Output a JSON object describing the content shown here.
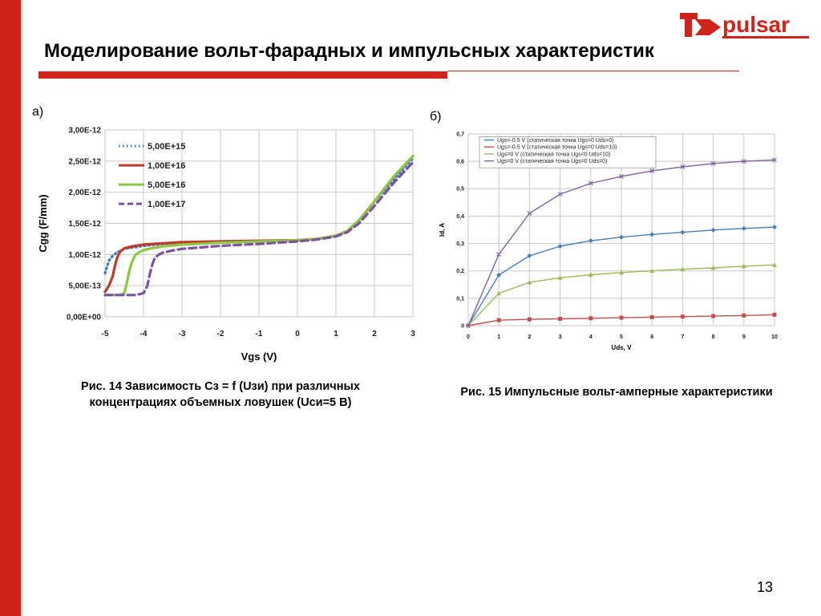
{
  "title": "Моделирование вольт-фарадных и импульсных характеристик",
  "logo": {
    "text": "pulsar"
  },
  "colors": {
    "accent": "#d0231c"
  },
  "labels": {
    "a": "а)",
    "b": "б)"
  },
  "captions": {
    "a_line1": "Рис. 14 Зависимость Сз = f (Uзи) при различных",
    "a_line2": "концентрациях объемных ловушек (Uси=5 В)",
    "b": "Рис. 15 Импульсные вольт-амперные характеристики"
  },
  "page_number": "13",
  "chart_data": [
    {
      "type": "scatter",
      "xlabel": "Vgs (V)",
      "ylabel": "Cgg (F/mm)",
      "xlim": [
        -5,
        3
      ],
      "ylim": [
        0,
        3e-12
      ],
      "x_ticks": [
        "-5",
        "-4",
        "-3",
        "-2",
        "-1",
        "0",
        "1",
        "2",
        "3"
      ],
      "y_ticks": [
        "0,00E+00",
        "5,00E-13",
        "1,00E-12",
        "1,50E-12",
        "2,00E-12",
        "2,50E-12",
        "3,00E-12"
      ],
      "grid": true,
      "legend_position": "top-left",
      "series": [
        {
          "name": "5,00E+15",
          "color": "#3a7dc4",
          "style": "dotted",
          "x": [
            -5,
            -4.9,
            -4.8,
            -4.7,
            -4.6,
            -4.5,
            -4.3,
            -4,
            -3.5,
            -3,
            -2,
            -1,
            0,
            0.5,
            1,
            1.3,
            1.6,
            2,
            2.5,
            3
          ],
          "y": [
            7e-13,
            9e-13,
            9.8e-13,
            1.03e-12,
            1.06e-12,
            1.09e-12,
            1.11e-12,
            1.14e-12,
            1.17e-12,
            1.19e-12,
            1.21e-12,
            1.22e-12,
            1.23e-12,
            1.25e-12,
            1.3e-12,
            1.38e-12,
            1.55e-12,
            1.85e-12,
            2.2e-12,
            2.55e-12
          ]
        },
        {
          "name": "1,00E+16",
          "color": "#c0392b",
          "style": "solid",
          "x": [
            -5,
            -4.9,
            -4.8,
            -4.75,
            -4.7,
            -4.65,
            -4.6,
            -4.5,
            -4.3,
            -4,
            -3.5,
            -3,
            -2,
            -1,
            0,
            0.5,
            1,
            1.3,
            1.6,
            2,
            2.5,
            3
          ],
          "y": [
            4e-13,
            5e-13,
            6.5e-13,
            8e-13,
            9.2e-13,
            1e-12,
            1.05e-12,
            1.1e-12,
            1.13e-12,
            1.16e-12,
            1.18e-12,
            1.2e-12,
            1.21e-12,
            1.22e-12,
            1.23e-12,
            1.25e-12,
            1.3e-12,
            1.38e-12,
            1.55e-12,
            1.85e-12,
            2.25e-12,
            2.58e-12
          ]
        },
        {
          "name": "5,00E+16",
          "color": "#8dc63f",
          "style": "solid",
          "x": [
            -5,
            -4.6,
            -4.5,
            -4.45,
            -4.4,
            -4.35,
            -4.3,
            -4.25,
            -4.2,
            -4.1,
            -4,
            -3.8,
            -3.5,
            -3,
            -2,
            -1,
            0,
            0.5,
            1,
            1.3,
            1.6,
            2,
            2.5,
            3
          ],
          "y": [
            3.5e-13,
            3.5e-13,
            3.8e-13,
            5e-13,
            6.5e-13,
            7.8e-13,
            8.8e-13,
            9.5e-13,
            1e-12,
            1.04e-12,
            1.07e-12,
            1.1e-12,
            1.13e-12,
            1.16e-12,
            1.19e-12,
            1.21e-12,
            1.23e-12,
            1.25e-12,
            1.3e-12,
            1.38e-12,
            1.55e-12,
            1.85e-12,
            2.25e-12,
            2.58e-12
          ]
        },
        {
          "name": "1,00E+17",
          "color": "#7b52a1",
          "style": "dashed",
          "x": [
            -5,
            -4.5,
            -4.2,
            -4.0,
            -3.9,
            -3.85,
            -3.8,
            -3.75,
            -3.7,
            -3.6,
            -3.5,
            -3.2,
            -3,
            -2,
            -1,
            0,
            0.5,
            1,
            1.3,
            1.6,
            2,
            2.5,
            3
          ],
          "y": [
            3.5e-13,
            3.5e-13,
            3.5e-13,
            3.8e-13,
            5e-13,
            6.5e-13,
            7.8e-13,
            8.8e-13,
            9.5e-13,
            1e-12,
            1.03e-12,
            1.07e-12,
            1.09e-12,
            1.14e-12,
            1.17e-12,
            1.21e-12,
            1.24e-12,
            1.29e-12,
            1.36e-12,
            1.5e-12,
            1.78e-12,
            2.15e-12,
            2.48e-12
          ]
        }
      ]
    },
    {
      "type": "line",
      "xlabel": "Uds, V",
      "ylabel": "Id, A",
      "xlim": [
        0,
        10
      ],
      "ylim": [
        0,
        0.7
      ],
      "x_ticks": [
        "0",
        "1",
        "2",
        "3",
        "4",
        "5",
        "6",
        "7",
        "8",
        "9",
        "10"
      ],
      "y_ticks": [
        "0",
        "0,1",
        "0,2",
        "0,3",
        "0,4",
        "0,5",
        "0,6",
        "0,7"
      ],
      "grid": true,
      "legend_position": "top-left",
      "series": [
        {
          "name": "Ugs=-0.5 V (статическая точка Ugs=0 Uds=0)",
          "color": "#4a7ebb",
          "marker": "diamond",
          "x": [
            0,
            1,
            2,
            3,
            4,
            5,
            6,
            7,
            8,
            9,
            10
          ],
          "y": [
            0,
            0.185,
            0.255,
            0.29,
            0.31,
            0.323,
            0.333,
            0.341,
            0.349,
            0.355,
            0.36
          ]
        },
        {
          "name": "Ugs=-0.5 V (статическая точка Ugs=0 Uds=10)",
          "color": "#c0504d",
          "marker": "square",
          "x": [
            0,
            1,
            2,
            3,
            4,
            5,
            6,
            7,
            8,
            9,
            10
          ],
          "y": [
            0,
            0.02,
            0.023,
            0.025,
            0.027,
            0.029,
            0.031,
            0.033,
            0.035,
            0.037,
            0.04
          ]
        },
        {
          "name": "Ugs=0 V (статическая точка Ugs=0 Uds=10)",
          "color": "#9bbb59",
          "marker": "triangle",
          "x": [
            0,
            1,
            2,
            3,
            4,
            5,
            6,
            7,
            8,
            9,
            10
          ],
          "y": [
            0,
            0.118,
            0.158,
            0.175,
            0.186,
            0.194,
            0.2,
            0.206,
            0.211,
            0.217,
            0.222
          ]
        },
        {
          "name": "Ugs=0 V (статическая точка Ugs=0 Uds=0)",
          "color": "#8064a2",
          "marker": "cross",
          "x": [
            0,
            1,
            2,
            3,
            4,
            5,
            6,
            7,
            8,
            9,
            10
          ],
          "y": [
            0,
            0.26,
            0.41,
            0.48,
            0.52,
            0.545,
            0.565,
            0.58,
            0.592,
            0.6,
            0.605
          ]
        }
      ]
    }
  ]
}
